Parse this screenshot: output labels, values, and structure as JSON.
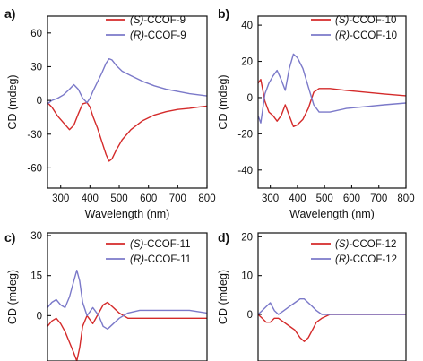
{
  "figure": {
    "colors": {
      "S": "#d42a2a",
      "R": "#7b79c9"
    }
  },
  "chart_data": [
    {
      "panel_label": "a)",
      "type": "line",
      "xlabel": "Wavelength (nm)",
      "ylabel": "CD (mdeg)",
      "xlim": [
        255,
        800
      ],
      "ylim": [
        -78,
        75
      ],
      "xticks": [
        300,
        400,
        500,
        600,
        700,
        800
      ],
      "yticks": [
        60,
        30,
        0,
        -30,
        -60
      ],
      "legend_position": "top-right",
      "series": [
        {
          "name_prefix": "(S)",
          "name_suffix": "-CCOF-9",
          "color": "#d42a2a",
          "x": [
            255,
            270,
            290,
            310,
            330,
            345,
            360,
            375,
            390,
            400,
            410,
            425,
            440,
            455,
            465,
            475,
            490,
            510,
            540,
            580,
            620,
            660,
            700,
            740,
            770,
            800
          ],
          "y": [
            -2,
            -6,
            -14,
            -20,
            -26,
            -22,
            -12,
            -3,
            -2,
            -6,
            -14,
            -24,
            -36,
            -48,
            -54,
            -52,
            -44,
            -35,
            -26,
            -18,
            -13,
            -10,
            -8,
            -7,
            -6,
            -5
          ]
        },
        {
          "name_prefix": "(R)",
          "name_suffix": "-CCOF-9",
          "color": "#7b79c9",
          "x": [
            255,
            270,
            290,
            310,
            330,
            345,
            360,
            375,
            390,
            400,
            410,
            425,
            440,
            455,
            465,
            475,
            490,
            510,
            540,
            580,
            620,
            660,
            700,
            740,
            770,
            800
          ],
          "y": [
            -3,
            0,
            2,
            5,
            10,
            14,
            10,
            2,
            -2,
            2,
            8,
            16,
            24,
            33,
            37,
            36,
            31,
            26,
            22,
            17,
            13,
            10,
            8,
            6,
            5,
            4
          ]
        }
      ]
    },
    {
      "panel_label": "b)",
      "type": "line",
      "xlabel": "Wavelength (nm)",
      "ylabel": "CD (mdeg)",
      "xlim": [
        255,
        800
      ],
      "ylim": [
        -50,
        45
      ],
      "xticks": [
        300,
        400,
        500,
        600,
        700,
        800
      ],
      "yticks": [
        40,
        20,
        0,
        -20,
        -40
      ],
      "legend_position": "top-right",
      "series": [
        {
          "name_prefix": "(S)",
          "name_suffix": "-CCOF-10",
          "color": "#d42a2a",
          "x": [
            255,
            265,
            280,
            295,
            310,
            325,
            340,
            355,
            370,
            385,
            400,
            420,
            440,
            460,
            480,
            520,
            580,
            650,
            720,
            800
          ],
          "y": [
            8,
            10,
            -2,
            -8,
            -10,
            -13,
            -10,
            -4,
            -10,
            -16,
            -15,
            -12,
            -6,
            3,
            5,
            5,
            4,
            3,
            2,
            1
          ]
        },
        {
          "name_prefix": "(R)",
          "name_suffix": "-CCOF-10",
          "color": "#7b79c9",
          "x": [
            255,
            265,
            280,
            295,
            310,
            325,
            340,
            355,
            370,
            385,
            400,
            420,
            440,
            460,
            480,
            520,
            580,
            650,
            720,
            800
          ],
          "y": [
            -10,
            -14,
            2,
            8,
            12,
            15,
            10,
            4,
            16,
            24,
            22,
            16,
            6,
            -4,
            -8,
            -8,
            -6,
            -5,
            -4,
            -3
          ]
        }
      ]
    },
    {
      "panel_label": "c)",
      "type": "line",
      "xlabel": "",
      "ylabel": "CD (mdeg)",
      "xlim": [
        255,
        800
      ],
      "ylim": [
        -17,
        31
      ],
      "xticks": [],
      "yticks": [
        30,
        15,
        0
      ],
      "legend_position": "top-right",
      "series": [
        {
          "name_prefix": "(S)",
          "name_suffix": "-CCOF-11",
          "color": "#d42a2a",
          "x": [
            255,
            270,
            285,
            300,
            315,
            330,
            345,
            355,
            365,
            375,
            390,
            410,
            430,
            445,
            460,
            480,
            500,
            530,
            570,
            620,
            680,
            740,
            800
          ],
          "y": [
            -4,
            -2,
            -1,
            -3,
            -6,
            -10,
            -14,
            -17,
            -12,
            -4,
            0,
            -3,
            1,
            4,
            5,
            3,
            1,
            -1,
            -1,
            -1,
            -1,
            -1,
            -1
          ]
        },
        {
          "name_prefix": "(R)",
          "name_suffix": "-CCOF-11",
          "color": "#7b79c9",
          "x": [
            255,
            270,
            285,
            300,
            315,
            330,
            345,
            355,
            365,
            375,
            390,
            410,
            430,
            445,
            460,
            480,
            500,
            530,
            570,
            620,
            680,
            740,
            800
          ],
          "y": [
            3,
            5,
            6,
            4,
            3,
            7,
            13,
            17,
            13,
            5,
            0,
            3,
            0,
            -4,
            -5,
            -3,
            -1,
            1,
            2,
            2,
            2,
            2,
            1
          ]
        }
      ]
    },
    {
      "panel_label": "d)",
      "type": "line",
      "xlabel": "",
      "ylabel": "CD (mdeg)",
      "xlim": [
        255,
        800
      ],
      "ylim": [
        -12,
        21
      ],
      "xticks": [],
      "yticks": [
        20,
        10,
        0
      ],
      "legend_position": "top-right",
      "series": [
        {
          "name_prefix": "(S)",
          "name_suffix": "-CCOF-12",
          "color": "#d42a2a",
          "x": [
            255,
            270,
            285,
            300,
            315,
            330,
            350,
            370,
            390,
            410,
            425,
            440,
            455,
            470,
            490,
            520,
            560,
            620,
            680,
            740,
            800
          ],
          "y": [
            0,
            -1,
            -2,
            -2,
            -1,
            -1,
            -2,
            -3,
            -4,
            -6,
            -7,
            -6,
            -4,
            -2,
            -1,
            0,
            0,
            0,
            0,
            0,
            0
          ]
        },
        {
          "name_prefix": "(R)",
          "name_suffix": "-CCOF-12",
          "color": "#7b79c9",
          "x": [
            255,
            270,
            285,
            300,
            315,
            330,
            350,
            370,
            390,
            410,
            425,
            440,
            455,
            470,
            490,
            520,
            560,
            620,
            680,
            740,
            800
          ],
          "y": [
            0,
            1,
            2,
            3,
            1,
            0,
            1,
            2,
            3,
            4,
            4,
            3,
            2,
            1,
            0,
            0,
            0,
            0,
            0,
            0,
            0
          ]
        }
      ]
    }
  ]
}
